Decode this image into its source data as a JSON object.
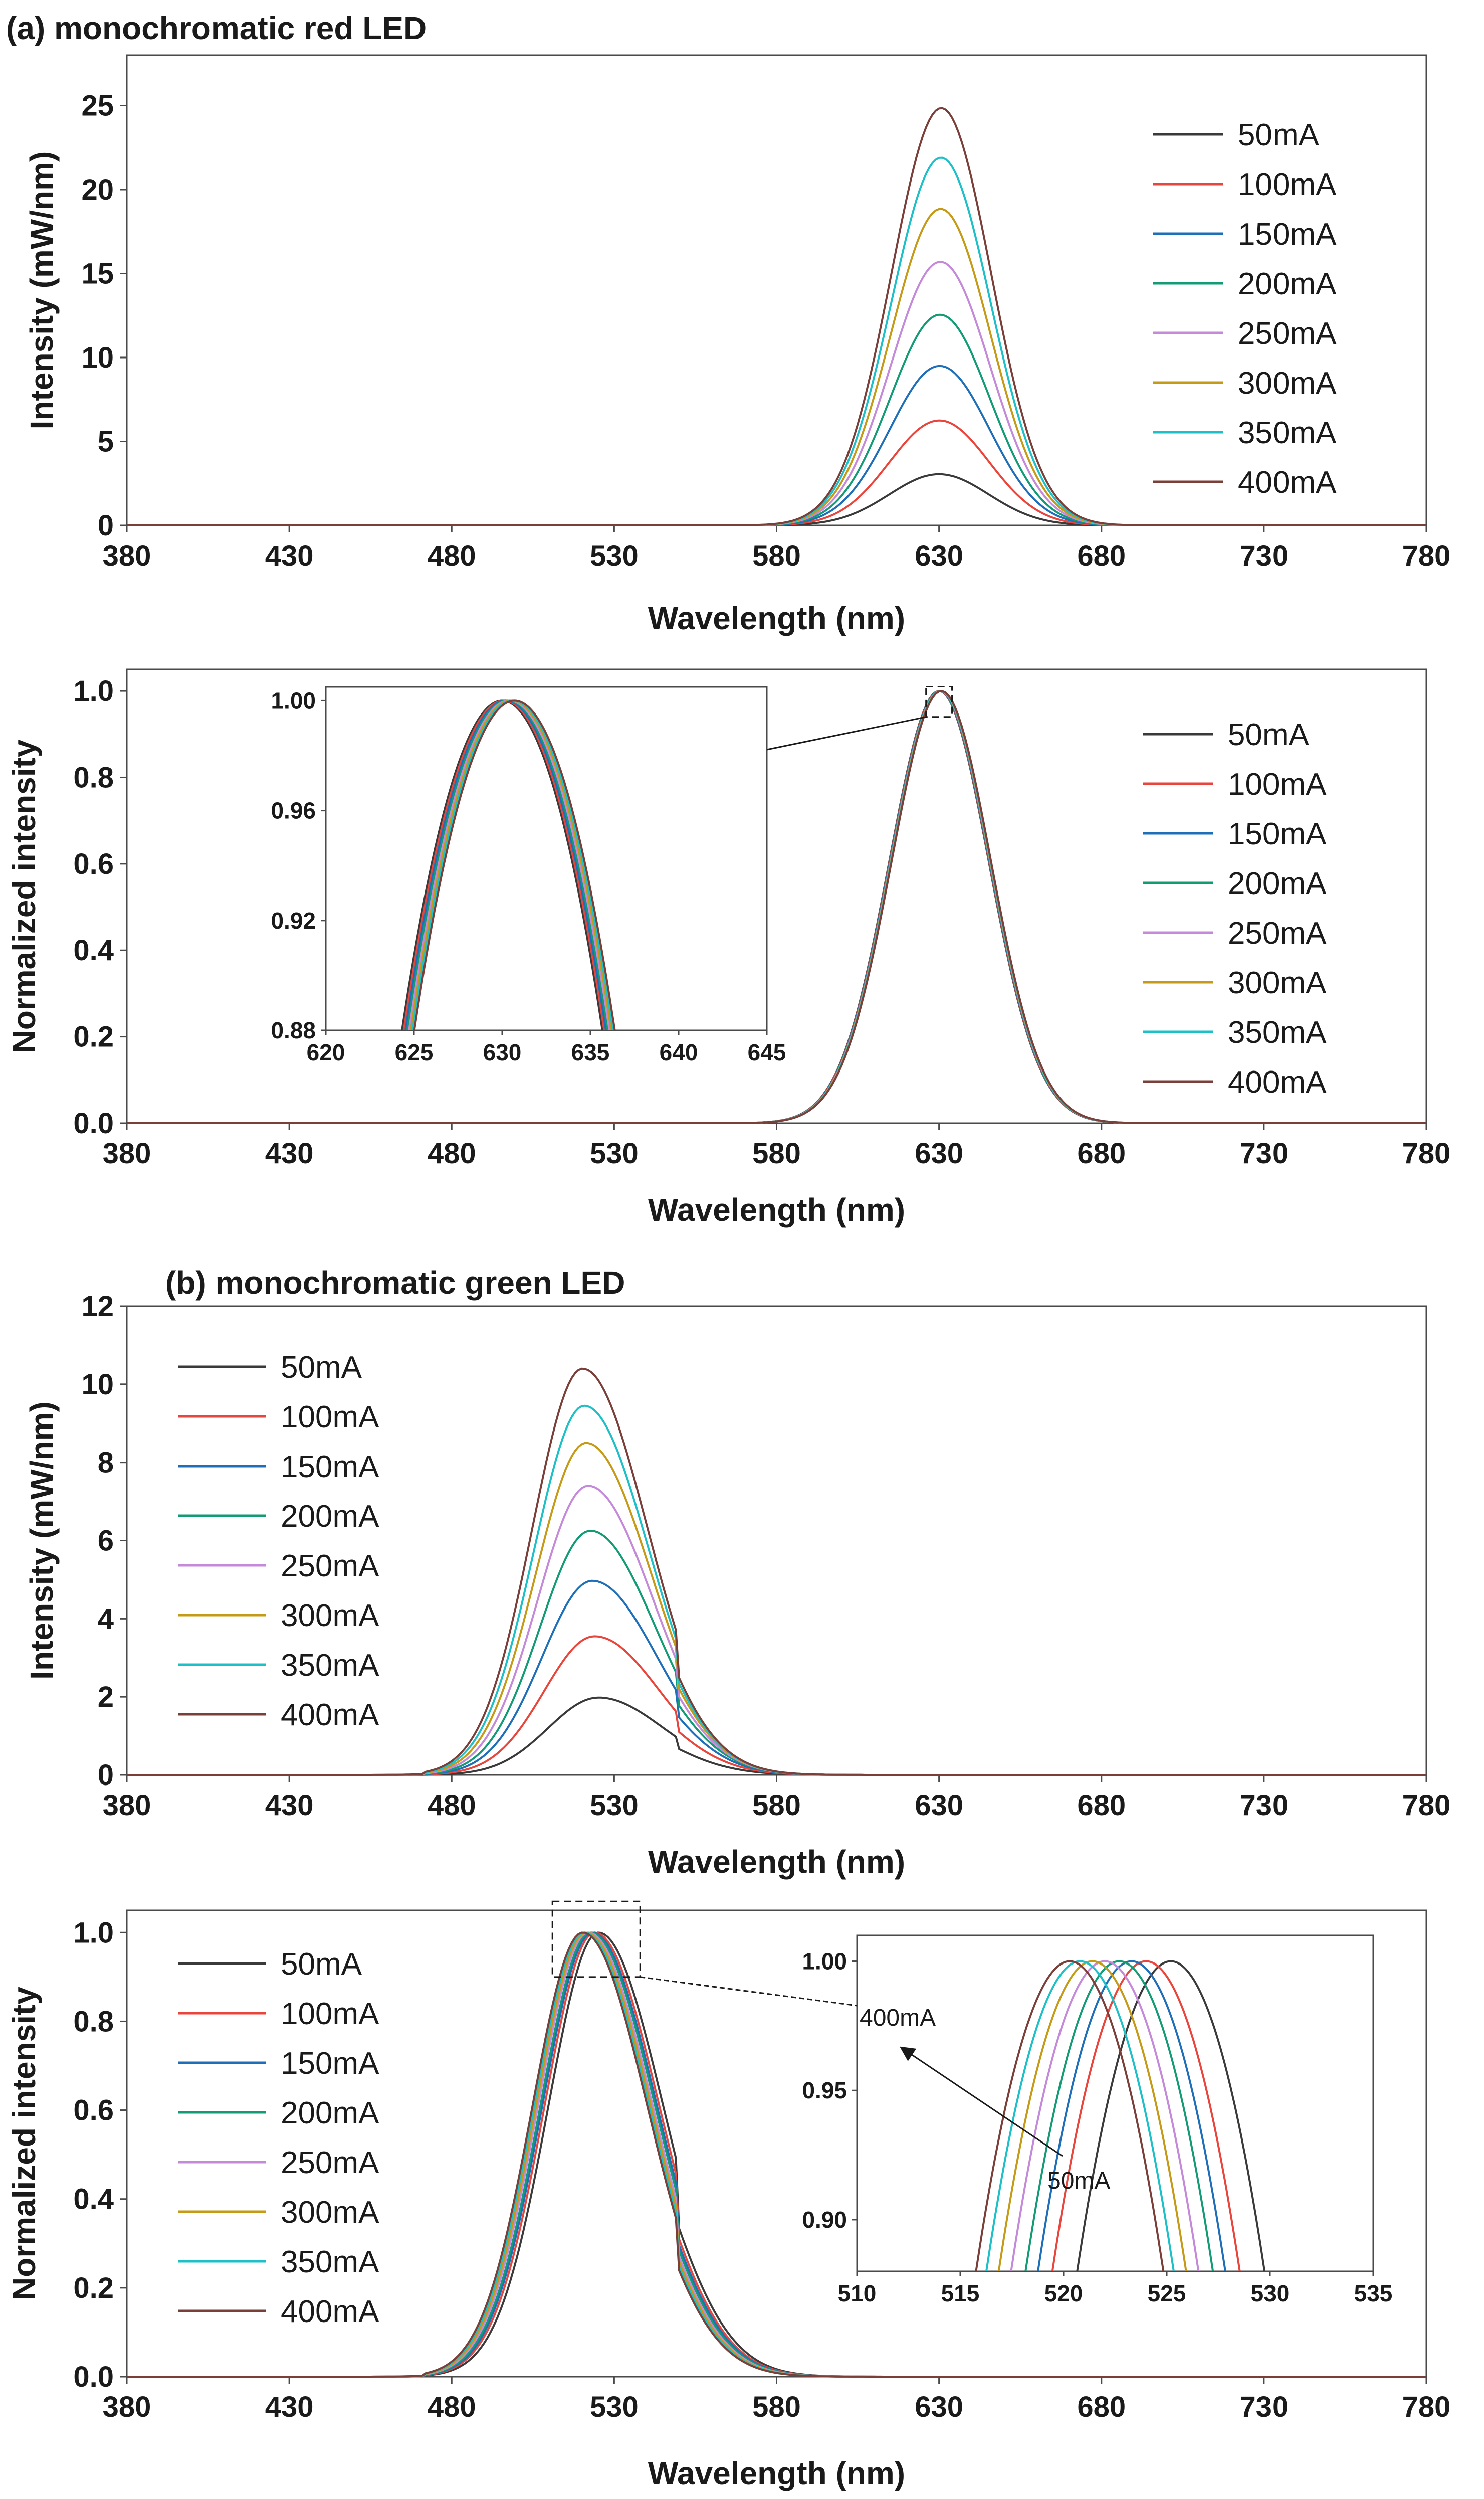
{
  "chart_data": [
    {
      "id": "a1",
      "type": "line",
      "panel_label": "(a) monochromatic  red LED",
      "xlabel": "Wavelength (nm)",
      "ylabel": "Intensity (mW/nm)",
      "xlim": [
        380,
        780
      ],
      "ylim": [
        0,
        28
      ],
      "xticks": [
        380,
        430,
        480,
        530,
        580,
        630,
        680,
        730,
        780
      ],
      "yticks": [
        0,
        5,
        10,
        15,
        20,
        25
      ],
      "legend_position": "top-right",
      "profile": {
        "kind": "gauss",
        "fwhm": 36,
        "base": 0
      },
      "series": [
        {
          "name": "50mA",
          "color": "#3a3a3a",
          "peak_nm": 630.0,
          "peak": 3.05
        },
        {
          "name": "100mA",
          "color": "#e8453c",
          "peak_nm": 630.1,
          "peak": 6.25
        },
        {
          "name": "150mA",
          "color": "#1f6fb8",
          "peak_nm": 630.2,
          "peak": 9.5
        },
        {
          "name": "200mA",
          "color": "#139b76",
          "peak_nm": 630.3,
          "peak": 12.55
        },
        {
          "name": "250mA",
          "color": "#c48ad9",
          "peak_nm": 630.4,
          "peak": 15.7
        },
        {
          "name": "300mA",
          "color": "#c49a16",
          "peak_nm": 630.5,
          "peak": 18.85
        },
        {
          "name": "350mA",
          "color": "#1ec0c8",
          "peak_nm": 630.6,
          "peak": 21.9
        },
        {
          "name": "400mA",
          "color": "#7b3f3a",
          "peak_nm": 630.7,
          "peak": 24.85
        }
      ]
    },
    {
      "id": "a2",
      "type": "line",
      "xlabel": "Wavelength (nm)",
      "ylabel": "Normalized intensity",
      "xlim": [
        380,
        780
      ],
      "ylim": [
        0,
        1.05
      ],
      "xticks": [
        380,
        430,
        480,
        530,
        580,
        630,
        680,
        730,
        780
      ],
      "yticks": [
        "0.0",
        "0.2",
        "0.4",
        "0.6",
        "0.8",
        "1.0"
      ],
      "legend_position": "right",
      "profile": {
        "kind": "gauss",
        "fwhm": 36,
        "base": 0
      },
      "series": [
        {
          "name": "50mA",
          "color": "#3a3a3a",
          "peak_nm": 630.0,
          "peak": 1.0
        },
        {
          "name": "100mA",
          "color": "#e8453c",
          "peak_nm": 630.1,
          "peak": 1.0
        },
        {
          "name": "150mA",
          "color": "#1f6fb8",
          "peak_nm": 630.2,
          "peak": 1.0
        },
        {
          "name": "200mA",
          "color": "#139b76",
          "peak_nm": 630.3,
          "peak": 1.0
        },
        {
          "name": "250mA",
          "color": "#c48ad9",
          "peak_nm": 630.4,
          "peak": 1.0
        },
        {
          "name": "300mA",
          "color": "#c49a16",
          "peak_nm": 630.5,
          "peak": 1.0
        },
        {
          "name": "350mA",
          "color": "#1ec0c8",
          "peak_nm": 630.6,
          "peak": 1.0
        },
        {
          "name": "400mA",
          "color": "#7b3f3a",
          "peak_nm": 630.7,
          "peak": 1.0
        }
      ],
      "zoom_box": {
        "x": [
          626,
          634
        ],
        "y": [
          0.94,
          1.01
        ]
      },
      "inset": {
        "xlim": [
          620,
          645
        ],
        "ylim": [
          0.88,
          1.005
        ],
        "xticks": [
          620,
          625,
          630,
          635,
          640,
          645
        ],
        "yticks": [
          "0.88",
          "0.92",
          "0.96",
          "1.00"
        ],
        "profile": {
          "kind": "para",
          "half_width": 16.4
        }
      }
    },
    {
      "id": "b1",
      "type": "line",
      "panel_label": "(b) monochromatic green LED",
      "xlabel": "Wavelength (nm)",
      "ylabel": "Intensity (mW/nm)",
      "xlim": [
        380,
        780
      ],
      "ylim": [
        0,
        12
      ],
      "xticks": [
        380,
        430,
        480,
        530,
        580,
        630,
        680,
        730,
        780
      ],
      "yticks": [
        0,
        2,
        4,
        6,
        8,
        10,
        12
      ],
      "legend_position": "top-left",
      "profile": {
        "kind": "green",
        "sigma_left": 15.5,
        "sigma_right": 20,
        "base": 0
      },
      "series": [
        {
          "name": "50mA",
          "color": "#3a3a3a",
          "peak_nm": 525.2,
          "peak": 1.98
        },
        {
          "name": "100mA",
          "color": "#e8453c",
          "peak_nm": 524.0,
          "peak": 3.55
        },
        {
          "name": "150mA",
          "color": "#1f6fb8",
          "peak_nm": 523.3,
          "peak": 4.97
        },
        {
          "name": "200mA",
          "color": "#139b76",
          "peak_nm": 522.7,
          "peak": 6.25
        },
        {
          "name": "250mA",
          "color": "#c48ad9",
          "peak_nm": 522.0,
          "peak": 7.4
        },
        {
          "name": "300mA",
          "color": "#c49a16",
          "peak_nm": 521.4,
          "peak": 8.5
        },
        {
          "name": "350mA",
          "color": "#1ec0c8",
          "peak_nm": 520.8,
          "peak": 9.45
        },
        {
          "name": "400mA",
          "color": "#7b3f3a",
          "peak_nm": 520.3,
          "peak": 10.4
        }
      ]
    },
    {
      "id": "b2",
      "type": "line",
      "xlabel": "Wavelength (nm)",
      "ylabel": "Normalized intensity",
      "xlim": [
        380,
        780
      ],
      "ylim": [
        0,
        1.05
      ],
      "xticks": [
        380,
        430,
        480,
        530,
        580,
        630,
        680,
        730,
        780
      ],
      "yticks": [
        "0.0",
        "0.2",
        "0.4",
        "0.6",
        "0.8",
        "1.0"
      ],
      "legend_position": "left",
      "profile": {
        "kind": "green",
        "sigma_left": 15.5,
        "sigma_right": 20,
        "base": 0
      },
      "series": [
        {
          "name": "50mA",
          "color": "#3a3a3a",
          "peak_nm": 525.2,
          "peak": 1.0
        },
        {
          "name": "100mA",
          "color": "#e8453c",
          "peak_nm": 524.0,
          "peak": 1.0
        },
        {
          "name": "150mA",
          "color": "#1f6fb8",
          "peak_nm": 523.3,
          "peak": 1.0
        },
        {
          "name": "200mA",
          "color": "#139b76",
          "peak_nm": 522.7,
          "peak": 1.0
        },
        {
          "name": "250mA",
          "color": "#c48ad9",
          "peak_nm": 522.0,
          "peak": 1.0
        },
        {
          "name": "300mA",
          "color": "#c49a16",
          "peak_nm": 521.4,
          "peak": 1.0
        },
        {
          "name": "350mA",
          "color": "#1ec0c8",
          "peak_nm": 520.8,
          "peak": 1.0
        },
        {
          "name": "400mA",
          "color": "#7b3f3a",
          "peak_nm": 520.3,
          "peak": 1.0
        }
      ],
      "zoom_box": {
        "x": [
          511,
          538
        ],
        "y": [
          0.9,
          1.07
        ]
      },
      "inset": {
        "xlim": [
          510,
          535
        ],
        "ylim": [
          0.88,
          1.01
        ],
        "xticks": [
          510,
          515,
          520,
          525,
          530,
          535
        ],
        "yticks": [
          "0.90",
          "0.95",
          "1.00"
        ],
        "profile": {
          "kind": "para",
          "half_width": 13.1
        },
        "annotation_start": "400mA",
        "annotation_end": "50mA"
      }
    }
  ]
}
